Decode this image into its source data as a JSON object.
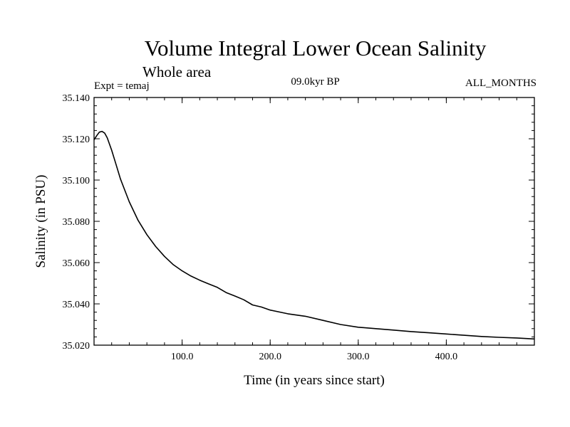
{
  "header": {
    "title": "Volume Integral Lower Ocean Salinity",
    "subtitle": "Whole area",
    "expt_label": "Expt = temaj",
    "period_label": "09.0kyr BP",
    "months_label": "ALL_MONTHS"
  },
  "chart_data": {
    "type": "line",
    "title": "Volume Integral Lower Ocean Salinity",
    "subtitle": "Whole area",
    "xlabel": "Time (in years since start)",
    "ylabel": "Salinity (in PSU)",
    "xlim": [
      0,
      500
    ],
    "ylim": [
      35.02,
      35.14
    ],
    "x_ticks": [
      100,
      200,
      300,
      400
    ],
    "x_tick_labels": [
      "100.0",
      "200.0",
      "300.0",
      "400.0"
    ],
    "y_ticks": [
      35.02,
      35.04,
      35.06,
      35.08,
      35.1,
      35.12,
      35.14
    ],
    "y_tick_labels": [
      "35.020",
      "35.040",
      "35.060",
      "35.080",
      "35.100",
      "35.120",
      "35.140"
    ],
    "grid": false,
    "line_color": "#000000",
    "series": [
      {
        "name": "Salinity",
        "x": [
          0,
          3,
          6,
          9,
          12,
          15,
          20,
          25,
          30,
          40,
          50,
          60,
          70,
          80,
          90,
          100,
          110,
          120,
          130,
          140,
          150,
          160,
          170,
          180,
          190,
          200,
          220,
          240,
          260,
          280,
          300,
          320,
          340,
          360,
          380,
          400,
          420,
          440,
          460,
          480,
          500
        ],
        "values": [
          35.1195,
          35.1215,
          35.1232,
          35.1236,
          35.1228,
          35.1205,
          35.1145,
          35.1075,
          35.1005,
          35.0895,
          35.0805,
          35.0735,
          35.0678,
          35.063,
          35.059,
          35.056,
          35.0535,
          35.0515,
          35.0497,
          35.048,
          35.0455,
          35.0438,
          35.042,
          35.0395,
          35.0385,
          35.037,
          35.0352,
          35.034,
          35.032,
          35.03,
          35.0287,
          35.028,
          35.0273,
          35.0266,
          35.026,
          35.0254,
          35.0248,
          35.0242,
          35.0238,
          35.0235,
          35.023
        ]
      }
    ]
  }
}
